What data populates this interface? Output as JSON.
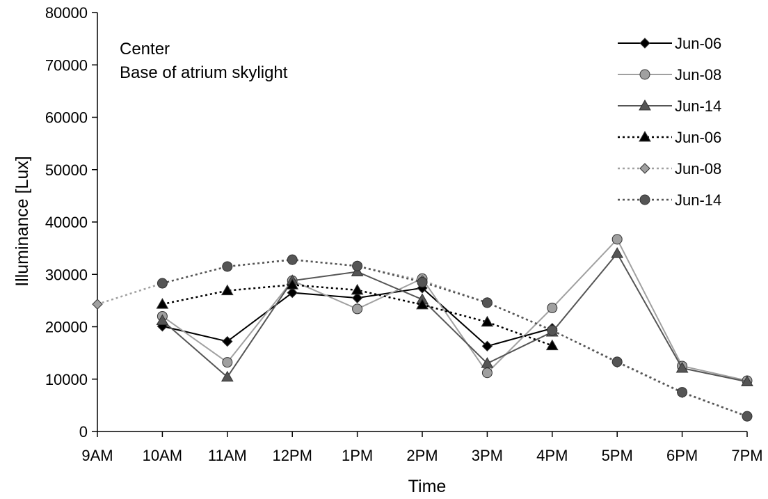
{
  "chart_data": {
    "type": "line",
    "annotation_lines": [
      "Center",
      "Base of atrium skylight"
    ],
    "xlabel": "Time",
    "ylabel": "Illuminance [Lux]",
    "categories": [
      "9AM",
      "10AM",
      "11AM",
      "12PM",
      "1PM",
      "2PM",
      "3PM",
      "4PM",
      "5PM",
      "6PM",
      "7PM"
    ],
    "ylim": [
      0,
      80000
    ],
    "yticks": [
      0,
      10000,
      20000,
      30000,
      40000,
      50000,
      60000,
      70000,
      80000
    ],
    "legend_position": "top-right",
    "grid": false,
    "series": [
      {
        "name": "Jun-06",
        "line": "solid",
        "marker": "diamond",
        "color": "#000000",
        "values": [
          null,
          20100,
          17200,
          26500,
          25500,
          27400,
          16300,
          19700,
          null,
          null,
          null
        ]
      },
      {
        "name": "Jun-08",
        "line": "solid",
        "marker": "circle",
        "color": "#a0a0a0",
        "values": [
          null,
          22000,
          13200,
          28800,
          23400,
          29200,
          11200,
          23600,
          36700,
          12500,
          9700
        ]
      },
      {
        "name": "Jun-14",
        "line": "solid",
        "marker": "triangle",
        "color": "#555555",
        "values": [
          null,
          21200,
          10400,
          28800,
          30500,
          25200,
          13000,
          19000,
          34000,
          12100,
          9500
        ]
      },
      {
        "name": "Jun-06",
        "line": "dotted",
        "marker": "triangle",
        "color": "#000000",
        "values": [
          null,
          24300,
          26900,
          28000,
          27000,
          24200,
          20900,
          16400,
          null,
          null,
          null
        ]
      },
      {
        "name": "Jun-08",
        "line": "dotted",
        "marker": "diamond",
        "color": "#a0a0a0",
        "values": [
          24300,
          28300,
          31500,
          32800,
          31600,
          28800,
          24600,
          19300,
          13200,
          7400,
          2900
        ]
      },
      {
        "name": "Jun-14",
        "line": "dotted",
        "marker": "circle",
        "color": "#555555",
        "values": [
          null,
          28300,
          31500,
          32800,
          31600,
          28500,
          24600,
          19300,
          13300,
          7500,
          2900
        ]
      }
    ]
  }
}
